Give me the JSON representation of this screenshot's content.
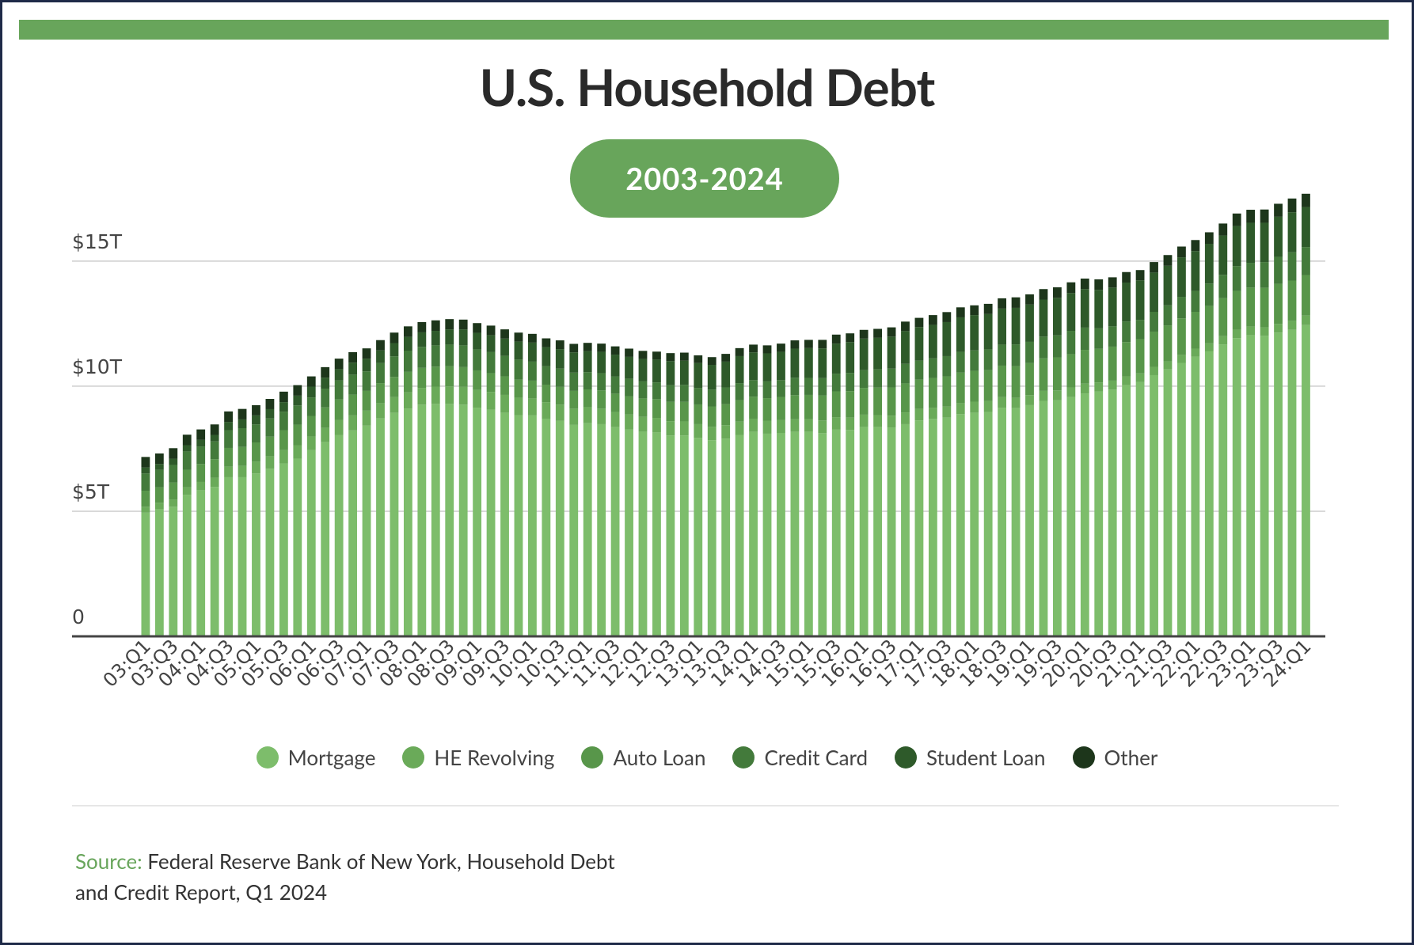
{
  "chart_data": {
    "type": "stacked_bar",
    "title": "U.S. Household Debt",
    "subtitle": "2003-2024",
    "categories": [
      "03:Q1",
      null,
      "03:Q3",
      null,
      "04:Q1",
      null,
      "04:Q3",
      null,
      "05:Q1",
      null,
      "05:Q3",
      null,
      "06:Q1",
      null,
      "06:Q3",
      null,
      "07:Q1",
      null,
      "07:Q3",
      null,
      "08:Q1",
      null,
      "08:Q3",
      null,
      "09:Q1",
      null,
      "09:Q3",
      null,
      "10:Q1",
      null,
      "10:Q3",
      null,
      "11:Q1",
      null,
      "11:Q3",
      null,
      "12:Q1",
      null,
      "12:Q3",
      null,
      "13:Q1",
      null,
      "13:Q3",
      null,
      "14:Q1",
      null,
      "14:Q3",
      null,
      "15:Q1",
      null,
      "15:Q3",
      null,
      "16:Q1",
      null,
      "16:Q3",
      null,
      "17:Q1",
      null,
      "17:Q3",
      null,
      "18:Q1",
      null,
      "18:Q3",
      null,
      "19:Q1",
      null,
      "19:Q3",
      null,
      "20:Q1",
      null,
      "20:Q3",
      null,
      "21:Q1",
      null,
      "21:Q3",
      null,
      "22:Q1",
      null,
      "22:Q3",
      null,
      "23:Q1",
      null,
      "23:Q3",
      null,
      "24:Q1"
    ],
    "series": [
      {
        "name": "Mortgage",
        "color": "#7dbd6b",
        "values": [
          4.94,
          5.08,
          5.18,
          5.66,
          5.84,
          5.97,
          6.36,
          6.36,
          6.51,
          6.7,
          6.91,
          7.1,
          7.44,
          7.76,
          8.05,
          8.23,
          8.42,
          8.71,
          8.93,
          9.1,
          9.26,
          9.29,
          9.29,
          9.26,
          9.14,
          9.06,
          8.94,
          8.84,
          8.83,
          8.7,
          8.61,
          8.45,
          8.52,
          8.48,
          8.36,
          8.27,
          8.18,
          8.15,
          8.03,
          8.03,
          7.93,
          7.84,
          7.9,
          8.05,
          8.17,
          8.1,
          8.13,
          8.17,
          8.17,
          8.12,
          8.26,
          8.25,
          8.37,
          8.36,
          8.35,
          8.48,
          8.63,
          8.69,
          8.74,
          8.88,
          8.94,
          8.97,
          9.14,
          9.12,
          9.24,
          9.41,
          9.44,
          9.56,
          9.71,
          9.78,
          9.86,
          10.04,
          10.16,
          10.44,
          10.67,
          10.93,
          11.18,
          11.39,
          11.67,
          11.92,
          12.04,
          12.01,
          12.14,
          12.25,
          12.44
        ]
      },
      {
        "name": "HE Revolving",
        "color": "#6aaa59",
        "values": [
          0.24,
          0.26,
          0.29,
          0.3,
          0.33,
          0.37,
          0.42,
          0.45,
          0.47,
          0.5,
          0.53,
          0.54,
          0.55,
          0.57,
          0.59,
          0.6,
          0.6,
          0.61,
          0.63,
          0.65,
          0.67,
          0.69,
          0.7,
          0.71,
          0.71,
          0.71,
          0.71,
          0.7,
          0.68,
          0.66,
          0.65,
          0.65,
          0.64,
          0.62,
          0.61,
          0.6,
          0.59,
          0.58,
          0.57,
          0.56,
          0.55,
          0.54,
          0.54,
          0.53,
          0.53,
          0.52,
          0.51,
          0.51,
          0.51,
          0.51,
          0.5,
          0.49,
          0.49,
          0.48,
          0.47,
          0.47,
          0.46,
          0.45,
          0.44,
          0.44,
          0.44,
          0.43,
          0.42,
          0.41,
          0.4,
          0.4,
          0.39,
          0.39,
          0.39,
          0.37,
          0.36,
          0.35,
          0.35,
          0.33,
          0.32,
          0.32,
          0.32,
          0.32,
          0.33,
          0.34,
          0.34,
          0.34,
          0.35,
          0.36,
          0.38
        ]
      },
      {
        "name": "Auto Loan",
        "color": "#58964a",
        "values": [
          0.64,
          0.62,
          0.68,
          0.7,
          0.72,
          0.74,
          0.75,
          0.76,
          0.77,
          0.78,
          0.8,
          0.82,
          0.82,
          0.82,
          0.83,
          0.83,
          0.79,
          0.8,
          0.81,
          0.82,
          0.8,
          0.8,
          0.81,
          0.79,
          0.78,
          0.75,
          0.74,
          0.72,
          0.71,
          0.7,
          0.71,
          0.71,
          0.71,
          0.73,
          0.73,
          0.73,
          0.74,
          0.75,
          0.77,
          0.78,
          0.79,
          0.81,
          0.84,
          0.86,
          0.88,
          0.9,
          0.93,
          0.96,
          0.97,
          1.0,
          1.03,
          1.06,
          1.07,
          1.1,
          1.13,
          1.16,
          1.17,
          1.19,
          1.21,
          1.22,
          1.23,
          1.24,
          1.26,
          1.27,
          1.28,
          1.3,
          1.32,
          1.33,
          1.35,
          1.34,
          1.36,
          1.37,
          1.37,
          1.41,
          1.44,
          1.46,
          1.47,
          1.5,
          1.52,
          1.55,
          1.56,
          1.58,
          1.6,
          1.61,
          1.62
        ]
      },
      {
        "name": "Credit Card",
        "color": "#437a3b",
        "values": [
          0.69,
          0.69,
          0.7,
          0.73,
          0.7,
          0.71,
          0.71,
          0.75,
          0.72,
          0.73,
          0.74,
          0.77,
          0.74,
          0.75,
          0.76,
          0.8,
          0.78,
          0.8,
          0.82,
          0.85,
          0.84,
          0.85,
          0.86,
          0.87,
          0.84,
          0.84,
          0.82,
          0.8,
          0.76,
          0.74,
          0.73,
          0.73,
          0.69,
          0.69,
          0.69,
          0.7,
          0.68,
          0.67,
          0.67,
          0.68,
          0.66,
          0.67,
          0.67,
          0.68,
          0.66,
          0.67,
          0.67,
          0.7,
          0.68,
          0.69,
          0.71,
          0.73,
          0.71,
          0.73,
          0.75,
          0.78,
          0.76,
          0.78,
          0.81,
          0.83,
          0.82,
          0.83,
          0.84,
          0.87,
          0.85,
          0.87,
          0.88,
          0.93,
          0.89,
          0.82,
          0.81,
          0.82,
          0.77,
          0.79,
          0.8,
          0.86,
          0.84,
          0.89,
          0.93,
          0.99,
          0.99,
          1.03,
          1.08,
          1.13,
          1.12
        ]
      },
      {
        "name": "Student Loan",
        "color": "#2e5a2a",
        "values": [
          0.24,
          0.24,
          0.25,
          0.25,
          0.26,
          0.26,
          0.33,
          0.35,
          0.36,
          0.37,
          0.38,
          0.39,
          0.43,
          0.44,
          0.45,
          0.48,
          0.51,
          0.51,
          0.53,
          0.55,
          0.58,
          0.58,
          0.61,
          0.64,
          0.66,
          0.68,
          0.69,
          0.72,
          0.76,
          0.76,
          0.78,
          0.81,
          0.84,
          0.85,
          0.87,
          0.87,
          0.9,
          0.91,
          0.96,
          0.97,
          0.99,
          0.99,
          1.03,
          1.08,
          1.11,
          1.12,
          1.13,
          1.16,
          1.19,
          1.19,
          1.2,
          1.23,
          1.26,
          1.26,
          1.28,
          1.31,
          1.34,
          1.34,
          1.36,
          1.38,
          1.41,
          1.41,
          1.44,
          1.46,
          1.49,
          1.48,
          1.5,
          1.51,
          1.54,
          1.54,
          1.55,
          1.56,
          1.58,
          1.57,
          1.58,
          1.58,
          1.59,
          1.59,
          1.57,
          1.6,
          1.6,
          1.57,
          1.6,
          1.6,
          1.6
        ]
      },
      {
        "name": "Other",
        "color": "#1d361b",
        "values": [
          0.42,
          0.42,
          0.42,
          0.42,
          0.42,
          0.42,
          0.42,
          0.42,
          0.41,
          0.41,
          0.42,
          0.42,
          0.41,
          0.42,
          0.42,
          0.42,
          0.41,
          0.41,
          0.42,
          0.42,
          0.41,
          0.42,
          0.41,
          0.39,
          0.39,
          0.38,
          0.37,
          0.36,
          0.35,
          0.35,
          0.35,
          0.34,
          0.33,
          0.33,
          0.33,
          0.33,
          0.32,
          0.32,
          0.32,
          0.32,
          0.31,
          0.31,
          0.31,
          0.32,
          0.31,
          0.32,
          0.33,
          0.33,
          0.33,
          0.34,
          0.36,
          0.35,
          0.35,
          0.36,
          0.37,
          0.38,
          0.37,
          0.39,
          0.4,
          0.4,
          0.39,
          0.41,
          0.41,
          0.42,
          0.41,
          0.42,
          0.42,
          0.43,
          0.42,
          0.42,
          0.41,
          0.42,
          0.41,
          0.42,
          0.43,
          0.43,
          0.44,
          0.46,
          0.48,
          0.5,
          0.52,
          0.53,
          0.52,
          0.55,
          0.53
        ]
      }
    ],
    "ylim": [
      0,
      18
    ],
    "yticks": [
      0,
      {
        "value": 5,
        "label": "$5T"
      },
      {
        "value": 10,
        "label": "$10T"
      },
      {
        "value": 15,
        "label": "$15T"
      }
    ],
    "grid": true,
    "legend": "bottom",
    "source_label": "Source:",
    "source_text": "Federal Reserve Bank of New York, Household Debt and Credit Report, Q1 2024"
  }
}
